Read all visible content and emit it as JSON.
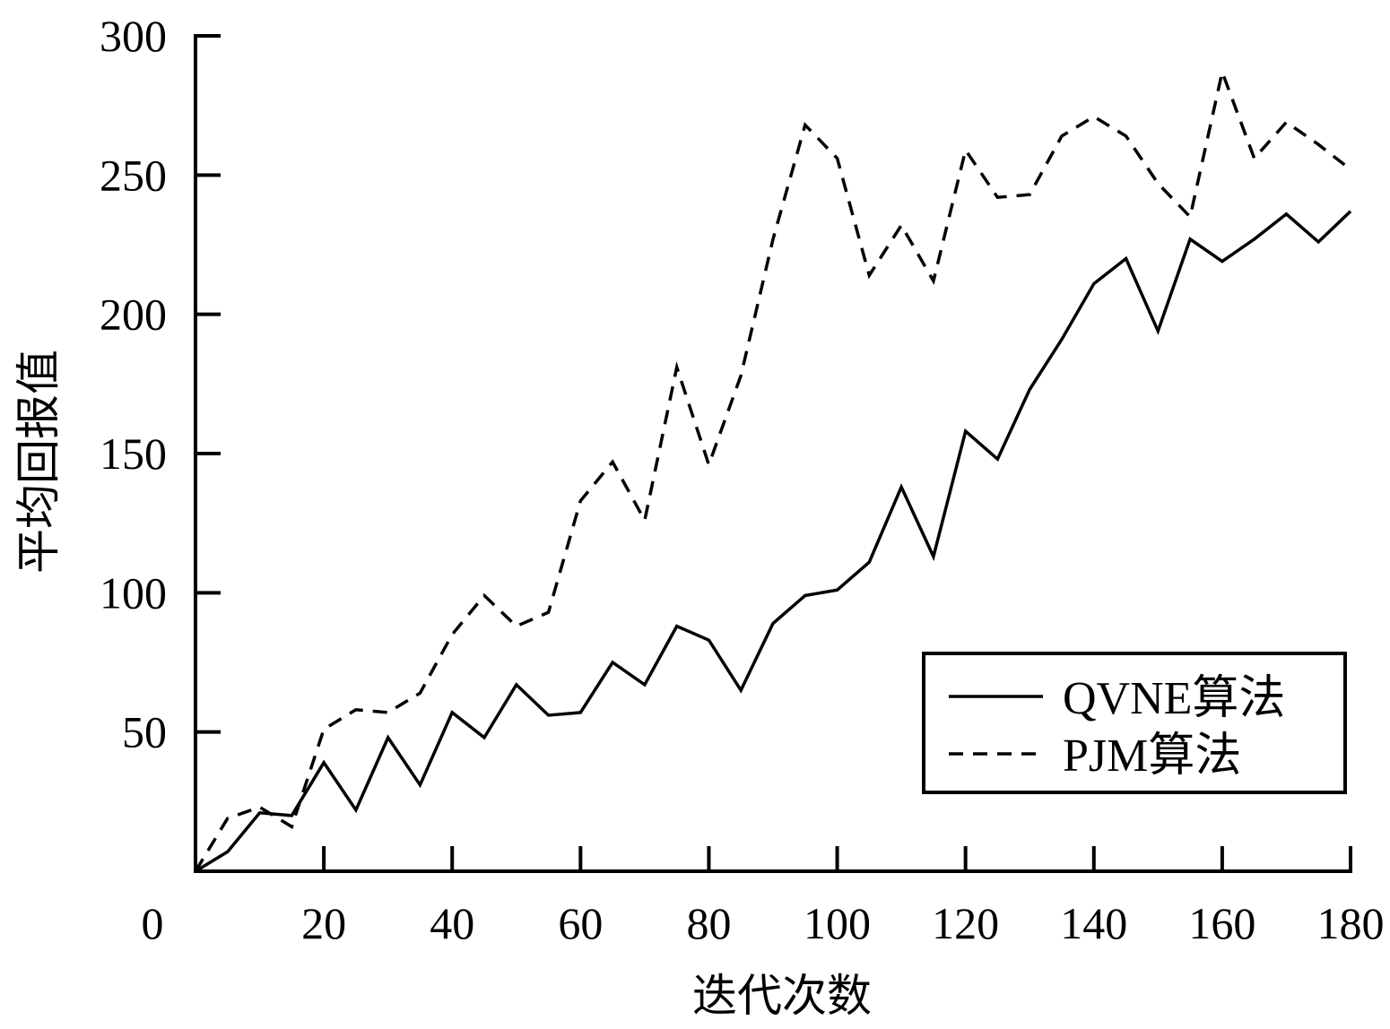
{
  "chart_data": {
    "type": "line",
    "title": "",
    "xlabel": "迭代次数",
    "ylabel": "平均回报值",
    "xlim": [
      0,
      180
    ],
    "ylim": [
      0,
      300
    ],
    "x_ticks": [
      0,
      20,
      40,
      60,
      80,
      100,
      120,
      140,
      160,
      180
    ],
    "y_ticks": [
      50,
      100,
      150,
      200,
      250,
      300
    ],
    "grid": false,
    "legend_position": "bottom-right",
    "x": [
      0,
      5,
      10,
      15,
      20,
      25,
      30,
      35,
      40,
      45,
      50,
      55,
      60,
      65,
      70,
      75,
      80,
      85,
      90,
      95,
      100,
      105,
      110,
      115,
      120,
      125,
      130,
      135,
      140,
      145,
      150,
      155,
      160,
      165,
      170,
      175,
      180
    ],
    "series": [
      {
        "name": "QVNE算法",
        "style": "solid",
        "color": "#000000",
        "values": [
          0,
          7,
          21,
          20,
          39,
          22,
          48,
          31,
          57,
          48,
          67,
          56,
          57,
          75,
          67,
          88,
          83,
          65,
          89,
          99,
          101,
          111,
          138,
          113,
          158,
          148,
          173,
          191,
          211,
          220,
          194,
          227,
          219,
          227,
          236,
          226,
          237
        ]
      },
      {
        "name": "PJM算法",
        "style": "dashed",
        "color": "#000000",
        "values": [
          0,
          19,
          23,
          16,
          51,
          58,
          57,
          64,
          85,
          99,
          88,
          93,
          133,
          147,
          126,
          181,
          146,
          178,
          227,
          268,
          256,
          214,
          232,
          212,
          259,
          242,
          243,
          264,
          271,
          264,
          247,
          235,
          287,
          256,
          269,
          261,
          252
        ]
      }
    ]
  }
}
